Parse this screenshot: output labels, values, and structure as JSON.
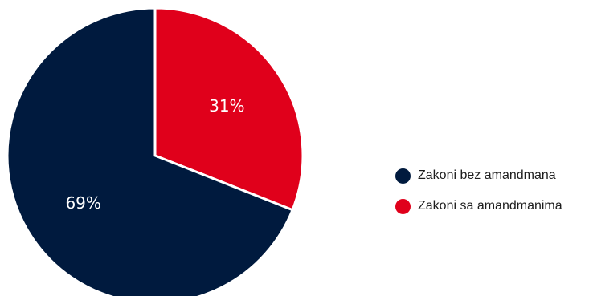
{
  "chart_data": {
    "type": "pie",
    "slices": [
      {
        "name": "Zakoni sa amandmanima",
        "value": 31,
        "label": "31%",
        "color": "#e0001b"
      },
      {
        "name": "Zakoni bez amandmana",
        "value": 69,
        "label": "69%",
        "color": "#001a3e"
      }
    ],
    "legend": {
      "placement": "right",
      "items": [
        {
          "label": "Zakoni bez amandmana",
          "color": "#001a3e"
        },
        {
          "label": "Zakoni sa amandmanima",
          "color": "#e0001b"
        }
      ]
    },
    "start_angle_deg": 0,
    "direction": "clockwise"
  }
}
